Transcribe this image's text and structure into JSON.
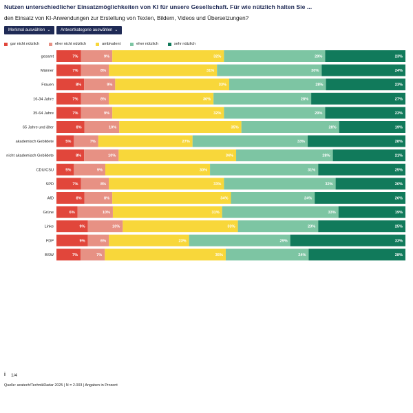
{
  "header": {
    "title": "Nutzen unterschiedlicher Einsatzmöglichkeiten von KI für unsere Gesellschaft. Für wie nützlich halten Sie ...",
    "subtitle": "den Einsatz von KI-Anwendungen zur Erstellung von Texten, Bildern, Videos und Übersetzungen?"
  },
  "controls": {
    "feature_dropdown": "Merkmal auswählen",
    "category_dropdown": "Antwortkategorie auswählen"
  },
  "colors": {
    "gar_nicht": "#e1463b",
    "eher_nicht": "#e79184",
    "ambivalent": "#f8d73a",
    "eher": "#7dc5a3",
    "sehr": "#117a5b",
    "title": "#1f2a55"
  },
  "footer": {
    "info_icon": "info-icon",
    "info_glyph": "i",
    "page": "1/4",
    "source": "Quelle: acatech/TechnikRadar 2025 | N = 2.003 | Angaben in Prozent"
  },
  "chart_data": {
    "type": "bar",
    "orientation": "horizontal",
    "stacked": true,
    "unit": "%",
    "categories": [
      "gesamt",
      "Männer",
      "Frauen",
      "16-34 Jahre",
      "35-64 Jahre",
      "65 Jahre und älter",
      "akademisch Gebildete",
      "nicht akademisch Gebildete",
      "CDU/CSU",
      "SPD",
      "AfD",
      "Grüne",
      "Linke",
      "FDP",
      "BSW"
    ],
    "series": [
      {
        "name": "gar nicht nützlich",
        "color": "#e1463b",
        "values": [
          7,
          7,
          8,
          7,
          7,
          8,
          5,
          8,
          5,
          7,
          8,
          6,
          9,
          9,
          7
        ]
      },
      {
        "name": "eher nicht nützlich",
        "color": "#e79184",
        "values": [
          9,
          8,
          9,
          8,
          9,
          10,
          7,
          10,
          9,
          8,
          8,
          10,
          10,
          6,
          7
        ]
      },
      {
        "name": "ambivalent",
        "color": "#f8d73a",
        "values": [
          32,
          31,
          33,
          30,
          32,
          35,
          27,
          34,
          30,
          33,
          34,
          31,
          33,
          23,
          35
        ]
      },
      {
        "name": "eher nützlich",
        "color": "#7dc5a3",
        "values": [
          29,
          30,
          28,
          28,
          29,
          28,
          33,
          28,
          31,
          32,
          24,
          33,
          23,
          29,
          24
        ]
      },
      {
        "name": "sehr nützlich",
        "color": "#117a5b",
        "values": [
          23,
          24,
          23,
          27,
          23,
          19,
          28,
          21,
          25,
          20,
          26,
          19,
          25,
          33,
          28
        ]
      }
    ],
    "legend": "top-left",
    "grid": false
  }
}
